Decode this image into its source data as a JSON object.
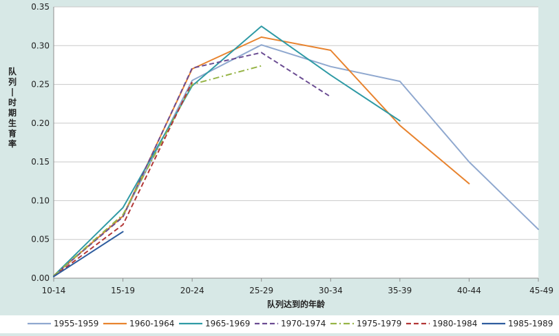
{
  "chart_data": {
    "type": "line",
    "title": "",
    "xlabel": "队列达到的年龄",
    "ylabel": "队列—时期生育率",
    "categories": [
      "10-14",
      "15-19",
      "20-24",
      "25-29",
      "30-34",
      "35-39",
      "40-44",
      "45-49"
    ],
    "ylim": [
      0,
      0.35
    ],
    "yticks": [
      "0.00",
      "0.05",
      "0.10",
      "0.15",
      "0.20",
      "0.25",
      "0.30",
      "0.35"
    ],
    "grid": "horizontal",
    "legend": "bottom",
    "series": [
      {
        "name": "1955-1959",
        "color": "#8fa8cf",
        "dash": "solid",
        "values": [
          0.003,
          0.08,
          0.255,
          0.301,
          0.273,
          0.254,
          0.15,
          0.063
        ]
      },
      {
        "name": "1960-1964",
        "color": "#e8832e",
        "dash": "solid",
        "values": [
          0.003,
          0.08,
          0.27,
          0.311,
          0.294,
          0.197,
          0.122,
          null
        ]
      },
      {
        "name": "1965-1969",
        "color": "#2f9aa5",
        "dash": "solid",
        "values": [
          0.003,
          0.091,
          0.248,
          0.325,
          0.262,
          0.203,
          null,
          null
        ]
      },
      {
        "name": "1970-1974",
        "color": "#6a4b92",
        "dash": "dash",
        "values": [
          0.003,
          0.079,
          0.271,
          0.291,
          0.234,
          null,
          null,
          null
        ]
      },
      {
        "name": "1975-1979",
        "color": "#96b446",
        "dash": "dashdot",
        "values": [
          0.003,
          0.082,
          0.25,
          0.274,
          null,
          null,
          null,
          null
        ]
      },
      {
        "name": "1980-1984",
        "color": "#b23636",
        "dash": "dash",
        "values": [
          0.002,
          0.069,
          0.253,
          null,
          null,
          null,
          null,
          null
        ]
      },
      {
        "name": "1985-1989",
        "color": "#2e5c9e",
        "dash": "solid",
        "values": [
          0.002,
          0.06,
          null,
          null,
          null,
          null,
          null,
          null
        ]
      }
    ]
  }
}
